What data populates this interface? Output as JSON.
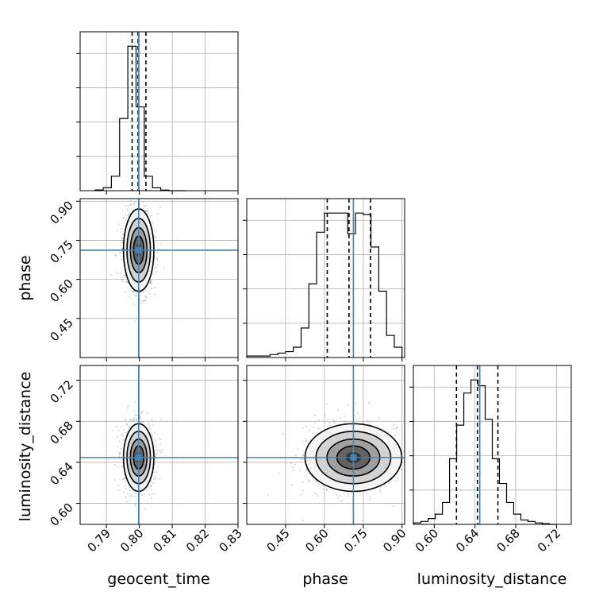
{
  "figure": {
    "type": "corner-plot",
    "parameters": [
      "geocent_time",
      "phase",
      "luminosity_distance"
    ],
    "colors": {
      "truth": "#4682b4",
      "hist": "#000000",
      "grid": "#b0b0b0",
      "quantile": "#000000",
      "contour_fill": [
        "#f5f5f5",
        "#cfcfcf",
        "#9a9a9a",
        "#5c5c5c",
        "#2e2e2e"
      ],
      "points": "#8a8a8a"
    }
  },
  "chart_data": [
    {
      "type": "histogram",
      "panel": "diag-geocent_time",
      "xlabel": "",
      "xlim": [
        0.782,
        0.83
      ],
      "x_ticks": [
        0.79,
        0.8,
        0.81,
        0.82,
        0.83
      ],
      "tick_labels_visible": false,
      "bins": [
        0.7865,
        0.789,
        0.7915,
        0.794,
        0.7965,
        0.799,
        0.8015,
        0.804,
        0.8065,
        0.809,
        0.8115,
        0.814
      ],
      "counts": [
        0.005,
        0.02,
        0.1,
        0.5,
        1.0,
        0.58,
        0.1,
        0.02,
        0.004,
        0.0,
        0.0,
        0.0
      ],
      "quantiles": [
        0.7978,
        0.7996,
        0.802
      ],
      "truth": 0.7998,
      "grid": true
    },
    {
      "type": "histogram",
      "panel": "diag-phase",
      "xlabel": "",
      "xlim": [
        0.3,
        0.91
      ],
      "x_ticks": [
        0.45,
        0.6,
        0.75,
        0.9
      ],
      "tick_labels_visible": false,
      "bins": [
        0.3,
        0.33,
        0.36,
        0.39,
        0.42,
        0.45,
        0.48,
        0.51,
        0.54,
        0.57,
        0.6,
        0.63,
        0.66,
        0.69,
        0.72,
        0.75,
        0.78,
        0.81,
        0.84,
        0.87,
        0.9
      ],
      "counts": [
        0.01,
        0.01,
        0.01,
        0.02,
        0.03,
        0.04,
        0.07,
        0.2,
        0.5,
        0.85,
        0.98,
        0.98,
        0.98,
        0.84,
        0.98,
        0.97,
        0.75,
        0.45,
        0.15,
        0.07,
        0.02
      ],
      "quantiles": [
        0.611,
        0.695,
        0.778
      ],
      "truth": 0.712,
      "grid": true
    },
    {
      "type": "histogram",
      "panel": "diag-luminosity_distance",
      "xlabel": "luminosity_distance",
      "xlim": [
        0.5795,
        0.7345
      ],
      "x_ticks": [
        0.6,
        0.64,
        0.68,
        0.72
      ],
      "tick_labels": [
        "0.60",
        "0.64",
        "0.68",
        "0.72"
      ],
      "bins": [
        0.58,
        0.587,
        0.594,
        0.601,
        0.608,
        0.615,
        0.622,
        0.629,
        0.636,
        0.643,
        0.65,
        0.657,
        0.664,
        0.671,
        0.678,
        0.685,
        0.692,
        0.699,
        0.706,
        0.713,
        0.72
      ],
      "counts": [
        0.01,
        0.02,
        0.04,
        0.07,
        0.15,
        0.45,
        0.68,
        0.9,
        0.99,
        0.95,
        0.72,
        0.45,
        0.28,
        0.15,
        0.07,
        0.03,
        0.02,
        0.01,
        0.005,
        0.0
      ],
      "quantiles": [
        0.6218,
        0.6424,
        0.6625
      ],
      "truth": 0.6447,
      "grid": true
    },
    {
      "type": "2d-density",
      "panel": "geocent_time-vs-phase",
      "xlabel": "",
      "ylabel": "phase",
      "xlim": [
        0.782,
        0.83
      ],
      "ylim": [
        0.3,
        0.91
      ],
      "y_ticks": [
        0.45,
        0.6,
        0.75,
        0.9
      ],
      "y_tick_labels": [
        "0.45",
        "0.60",
        "0.75",
        "0.90"
      ],
      "center": [
        0.7998,
        0.712
      ],
      "spread": [
        0.0021,
        0.072
      ],
      "truth": [
        0.7998,
        0.712
      ],
      "grid": true
    },
    {
      "type": "2d-density",
      "panel": "geocent_time-vs-luminosity_distance",
      "xlabel": "geocent_time",
      "ylabel": "luminosity_distance",
      "xlim": [
        0.782,
        0.83
      ],
      "ylim": [
        0.5795,
        0.7345
      ],
      "x_ticks": [
        0.79,
        0.8,
        0.81,
        0.82,
        0.83
      ],
      "x_tick_labels": [
        "0.79",
        "0.80",
        "0.81",
        "0.82",
        "0.83"
      ],
      "y_ticks": [
        0.6,
        0.64,
        0.68,
        0.72
      ],
      "y_tick_labels": [
        "0.60",
        "0.64",
        "0.68",
        "0.72"
      ],
      "center": [
        0.7998,
        0.6447
      ],
      "spread": [
        0.0021,
        0.015
      ],
      "truth": [
        0.7998,
        0.6447
      ],
      "grid": true
    },
    {
      "type": "2d-density",
      "panel": "phase-vs-luminosity_distance",
      "xlabel": "phase",
      "ylabel": "",
      "xlim": [
        0.3,
        0.91
      ],
      "ylim": [
        0.5795,
        0.7345
      ],
      "x_ticks": [
        0.45,
        0.6,
        0.75,
        0.9
      ],
      "x_tick_labels": [
        "0.45",
        "0.60",
        "0.75",
        "0.90"
      ],
      "center": [
        0.712,
        0.6447
      ],
      "spread": [
        0.085,
        0.015
      ],
      "truth": [
        0.712,
        0.6447
      ],
      "grid": true
    }
  ]
}
